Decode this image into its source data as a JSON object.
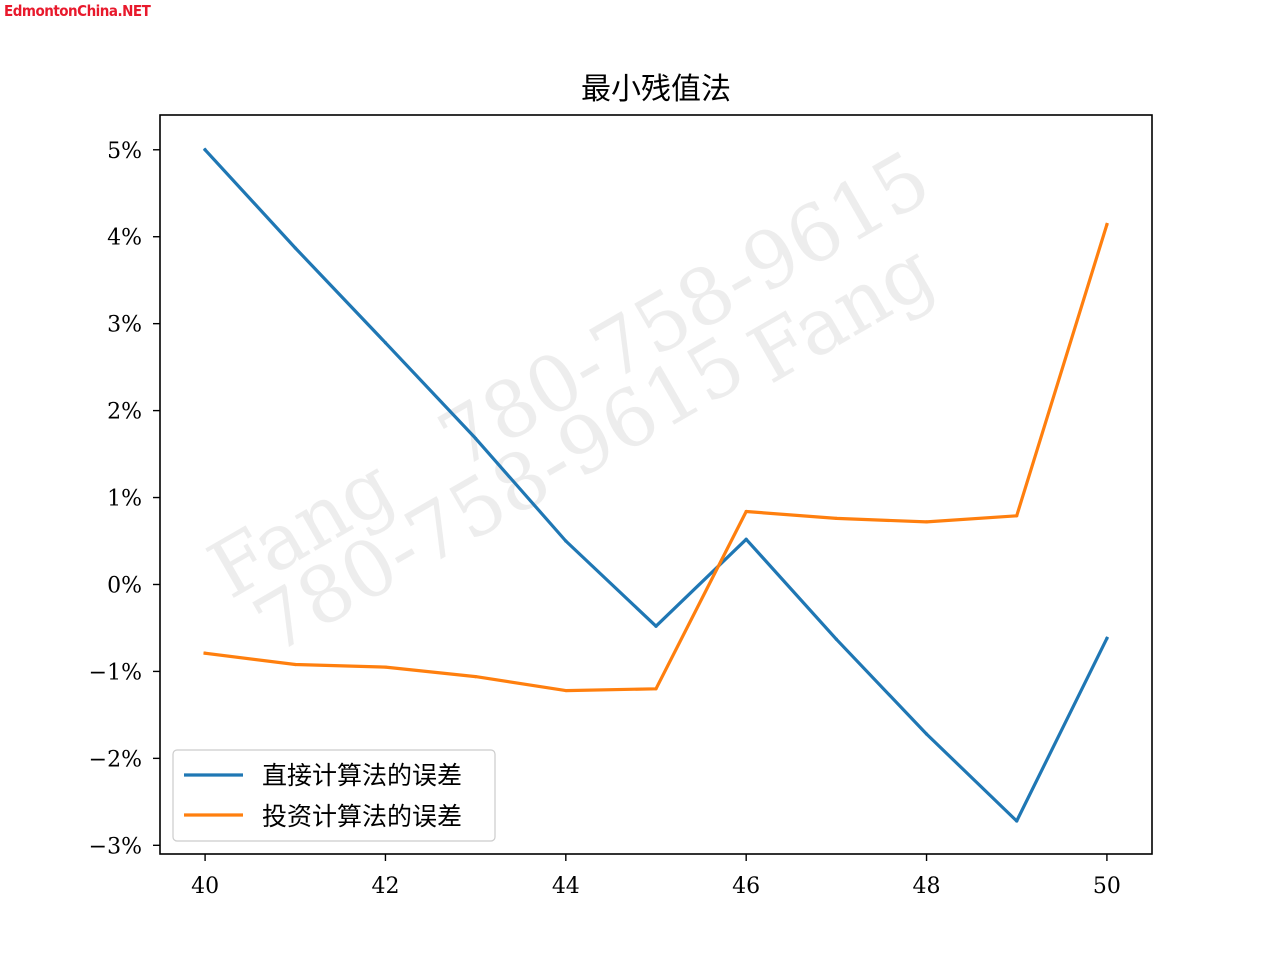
{
  "site_mark": "EdmontonChina.NET",
  "watermarks": [
    "780-758-9615",
    "Fang",
    "780-758-9615",
    "Fang",
    "780-758-9615"
  ],
  "chart_data": {
    "type": "line",
    "title": "最小残值法",
    "xlabel": "",
    "ylabel": "",
    "x": [
      40,
      41,
      42,
      43,
      44,
      45,
      46,
      47,
      48,
      49,
      50
    ],
    "xlim": [
      39.5,
      50.5
    ],
    "ylim": [
      -3.1,
      5.4
    ],
    "x_ticks": [
      40,
      42,
      44,
      46,
      48,
      50
    ],
    "x_tick_labels": [
      "40",
      "42",
      "44",
      "46",
      "48",
      "50"
    ],
    "y_ticks": [
      -3,
      -2,
      -1,
      0,
      1,
      2,
      3,
      4,
      5
    ],
    "y_tick_labels": [
      "−3%",
      "−2%",
      "−1%",
      "0%",
      "1%",
      "2%",
      "3%",
      "4%",
      "5%"
    ],
    "y_unit": "%",
    "grid": false,
    "legend_position": "lower-left",
    "series": [
      {
        "name": "直接计算法的误差",
        "color": "#1f77b4",
        "values": [
          5.0,
          3.87,
          2.78,
          1.68,
          0.5,
          -0.48,
          0.52,
          -0.63,
          -1.72,
          -2.72,
          -0.62
        ]
      },
      {
        "name": "投资计算法的误差",
        "color": "#ff7f0e",
        "values": [
          -0.79,
          -0.92,
          -0.95,
          -1.06,
          -1.22,
          -1.2,
          0.84,
          0.76,
          0.72,
          0.79,
          4.14
        ]
      }
    ]
  }
}
